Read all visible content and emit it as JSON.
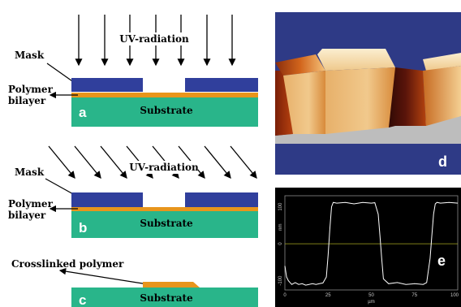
{
  "panel_a": {
    "radiation": "UV-radiation",
    "mask": "Mask",
    "polymer_line1": "Polymer",
    "polymer_line2": "bilayer",
    "substrate": "Substrate",
    "letter": "a"
  },
  "panel_b": {
    "radiation": "UV-radiation",
    "mask": "Mask",
    "polymer_line1": "Polymer",
    "polymer_line2": "bilayer",
    "substrate": "Substrate",
    "letter": "b"
  },
  "panel_c": {
    "crosslinked": "Crosslinked polymer",
    "substrate": "Substrate",
    "letter": "c"
  },
  "panel_d": {
    "letter": "d"
  },
  "panel_e": {
    "letter": "e",
    "yticks": [
      "100",
      "0",
      "-100"
    ],
    "ylabel": "nm",
    "xticks": [
      "0",
      "25",
      "50",
      "75",
      "100"
    ],
    "xlabel": "µm"
  },
  "colors": {
    "mask": "#303f9c",
    "polymer": "#e8951c",
    "substrate": "#29b58a",
    "afm_background": "#2e3a86",
    "profile_line": "#ffffff",
    "reference_line": "#a8a820"
  },
  "chart_data": {
    "type": "line",
    "title": "",
    "xlabel": "µm",
    "ylabel": "nm",
    "xlim": [
      0,
      100
    ],
    "ylim": [
      -125,
      130
    ],
    "x_ticks": [
      0,
      25,
      50,
      75,
      100
    ],
    "y_ticks": [
      100,
      0,
      -100
    ],
    "series": [
      {
        "x": [
          0,
          1,
          2,
          3,
          4,
          6,
          8,
          10,
          12,
          14,
          16,
          18,
          20,
          22,
          24,
          25,
          26,
          27,
          28,
          30,
          35,
          40,
          45,
          50,
          52,
          54,
          55,
          56,
          57,
          60,
          65,
          70,
          75,
          80,
          82,
          84,
          85,
          86,
          87,
          88,
          90,
          95,
          100
        ],
        "y": [
          -60,
          -90,
          -100,
          -105,
          -110,
          -105,
          -110,
          -108,
          -112,
          -110,
          -108,
          -110,
          -108,
          -106,
          -90,
          -30,
          40,
          100,
          112,
          110,
          112,
          108,
          112,
          110,
          111,
          80,
          20,
          -40,
          -95,
          -108,
          -105,
          -110,
          -108,
          -110,
          -105,
          -40,
          20,
          80,
          108,
          112,
          110,
          112,
          110
        ]
      }
    ]
  }
}
